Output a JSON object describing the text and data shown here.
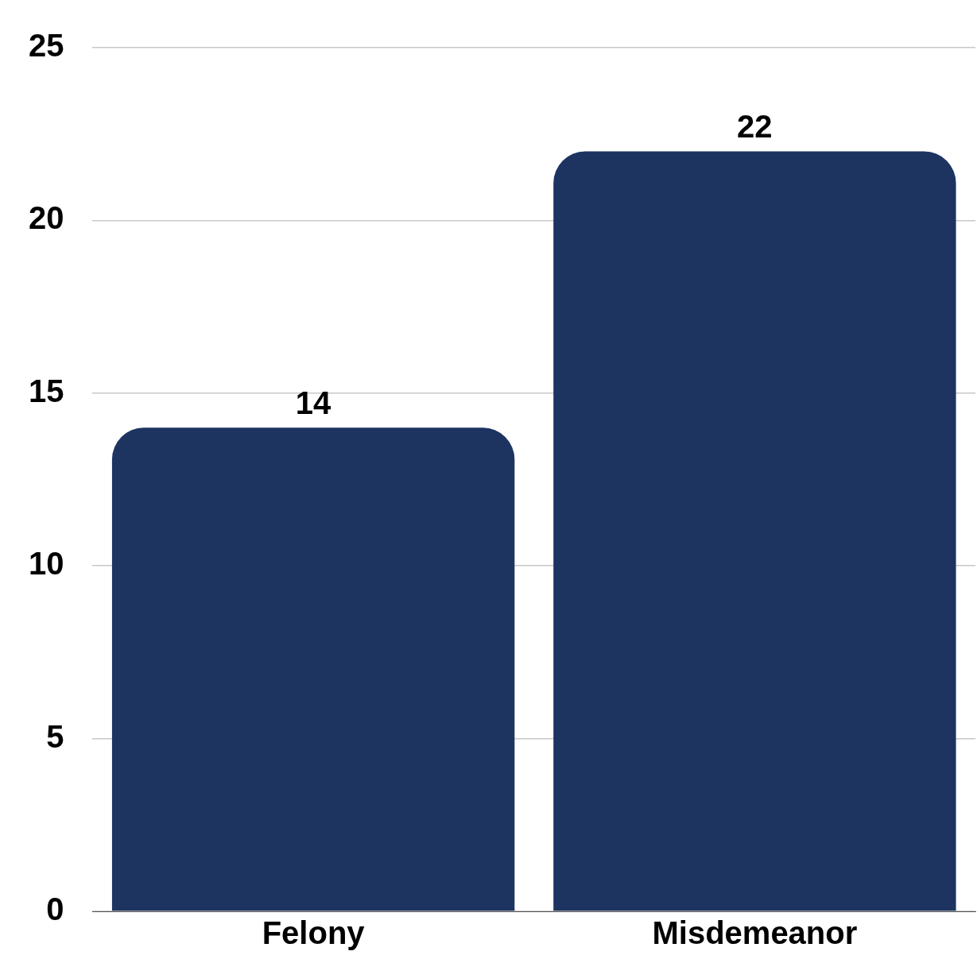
{
  "chart_data": {
    "type": "bar",
    "categories": [
      "Felony",
      "Misdemeanor"
    ],
    "values": [
      14,
      22
    ],
    "color": "#1d3461",
    "ylim": [
      0,
      25
    ],
    "yticks": [
      0,
      5,
      10,
      15,
      20,
      25
    ],
    "grid": "y",
    "legend": false,
    "data_labels": true
  }
}
